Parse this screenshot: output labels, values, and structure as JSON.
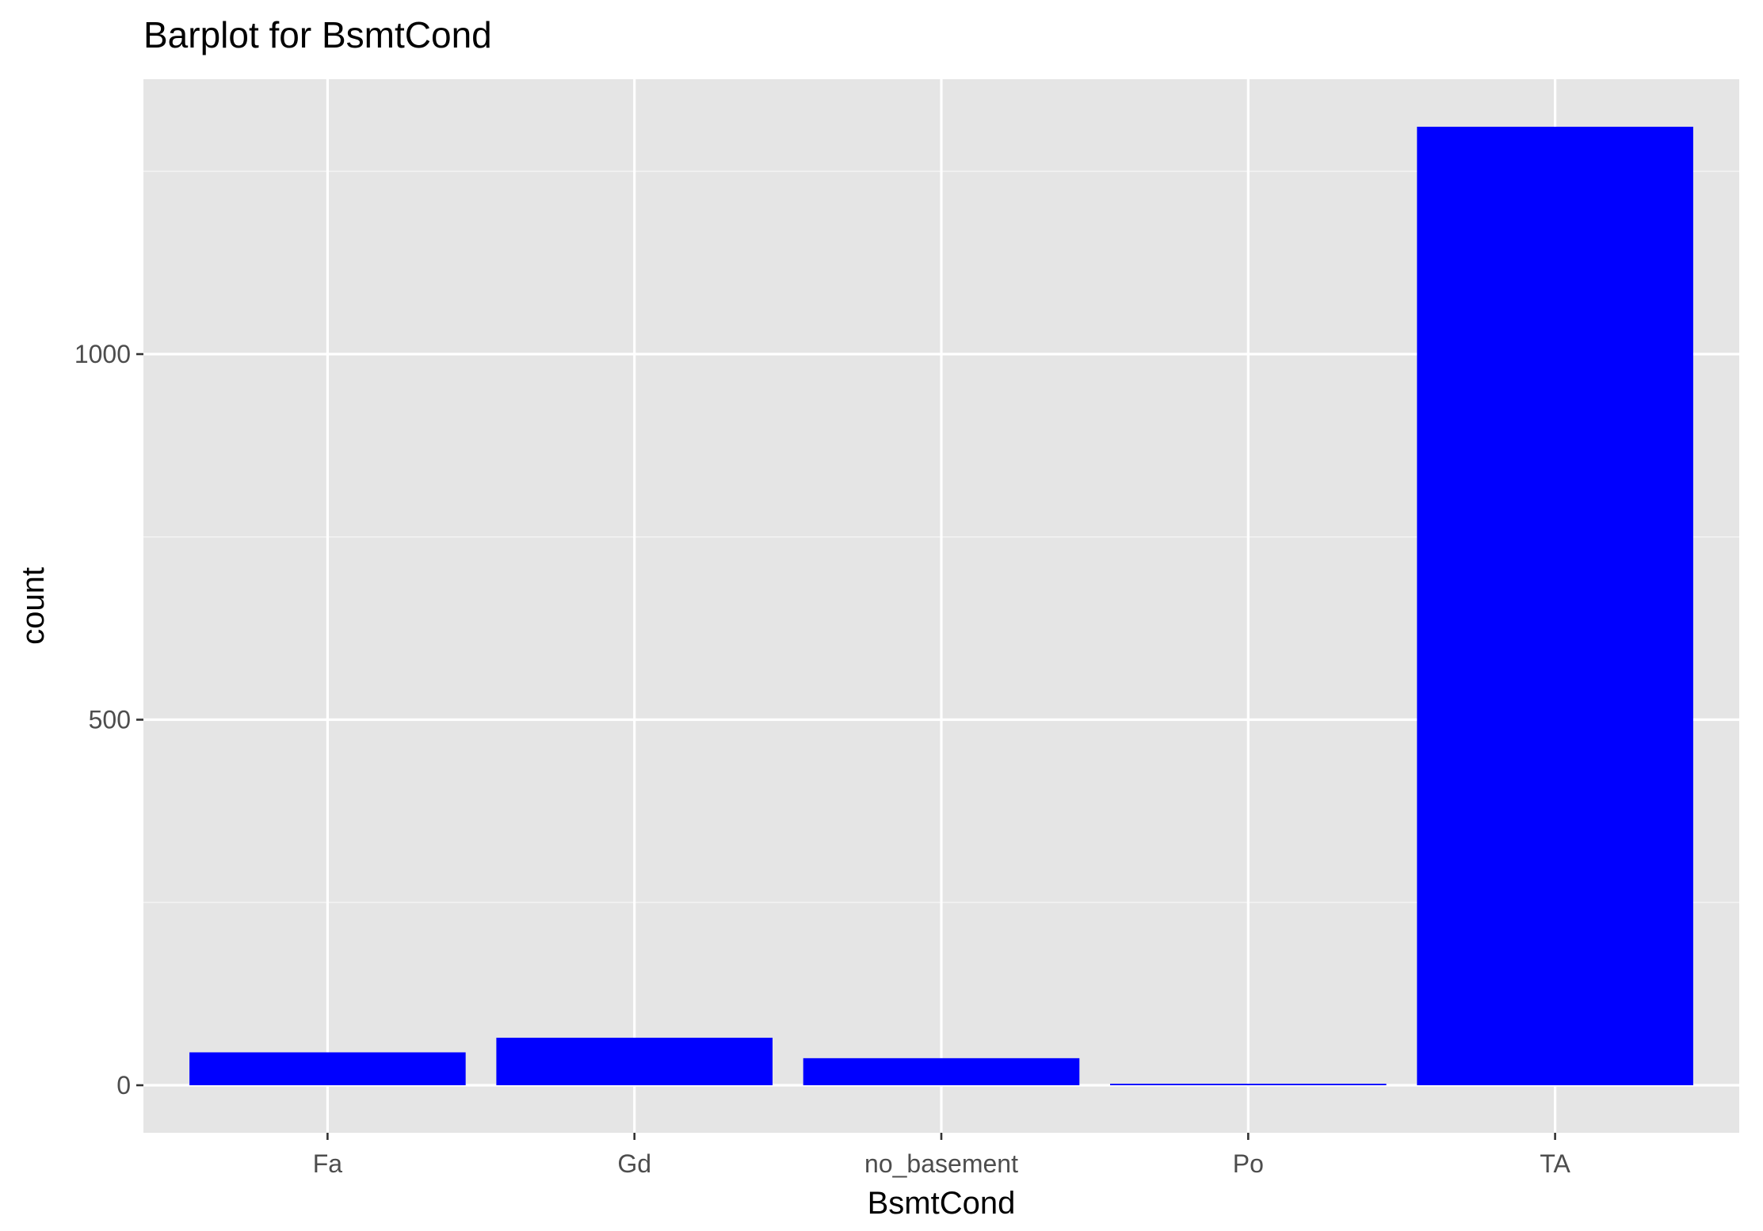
{
  "chart_data": {
    "type": "bar",
    "title": "Barplot for BsmtCond",
    "xlabel": "BsmtCond",
    "ylabel": "count",
    "categories": [
      "Fa",
      "Gd",
      "no_basement",
      "Po",
      "TA"
    ],
    "values": [
      45,
      65,
      37,
      2,
      1311
    ],
    "ylim": [
      -65,
      1376
    ],
    "y_ticks": [
      0,
      500,
      1000
    ],
    "y_tick_labels": [
      "0",
      "500",
      "1000"
    ],
    "grid": true,
    "legend": "none",
    "colors": {
      "bar": "#0000ff",
      "panel_background": "#e5e5e5",
      "grid_major": "#ffffff",
      "grid_minor": "#f2f2f2",
      "tick_label": "#4d4d4d",
      "tick_mark": "#333333",
      "text": "#000000"
    }
  }
}
